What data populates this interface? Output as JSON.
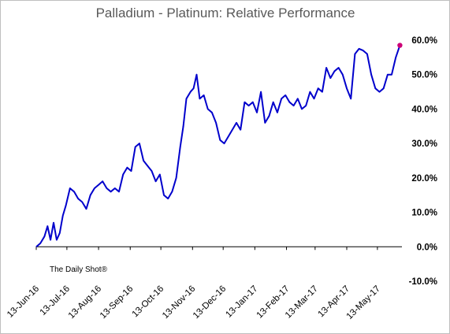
{
  "chart_data": {
    "type": "line",
    "title": "Palladium - Platinum:   Relative Performance",
    "xlabel": "",
    "ylabel": "",
    "ylim": [
      -10,
      60
    ],
    "y_ticks": [
      "-10.0%",
      "0.0%",
      "10.0%",
      "20.0%",
      "30.0%",
      "40.0%",
      "50.0%",
      "60.0%"
    ],
    "x_ticks": [
      "13-Jun-16",
      "13-Jul-16",
      "13-Aug-16",
      "13-Sep-16",
      "13-Oct-16",
      "13-Nov-16",
      "13-Dec-16",
      "13-Jan-17",
      "13-Feb-17",
      "13-Mar-17",
      "13-Apr-17",
      "13-May-17"
    ],
    "annotation": "The Daily Shot®",
    "line_color": "#0000cc",
    "marker_color": "#cc0077",
    "series": [
      {
        "x": [
          "2016-06-13",
          "2016-06-17",
          "2016-06-21",
          "2016-06-24",
          "2016-06-27",
          "2016-06-30",
          "2016-07-03",
          "2016-07-06",
          "2016-07-09",
          "2016-07-12",
          "2016-07-16",
          "2016-07-20",
          "2016-07-24",
          "2016-07-28",
          "2016-08-01",
          "2016-08-05",
          "2016-08-09",
          "2016-08-13",
          "2016-08-17",
          "2016-08-21",
          "2016-08-25",
          "2016-08-29",
          "2016-09-02",
          "2016-09-06",
          "2016-09-10",
          "2016-09-14",
          "2016-09-18",
          "2016-09-22",
          "2016-09-26",
          "2016-09-30",
          "2016-10-04",
          "2016-10-08",
          "2016-10-12",
          "2016-10-16",
          "2016-10-20",
          "2016-10-24",
          "2016-10-28",
          "2016-11-01",
          "2016-11-04",
          "2016-11-07",
          "2016-11-11",
          "2016-11-14",
          "2016-11-17",
          "2016-11-20",
          "2016-11-24",
          "2016-11-28",
          "2016-12-02",
          "2016-12-06",
          "2016-12-10",
          "2016-12-14",
          "2016-12-18",
          "2016-12-22",
          "2016-12-26",
          "2016-12-30",
          "2017-01-03",
          "2017-01-07",
          "2017-01-11",
          "2017-01-15",
          "2017-01-19",
          "2017-01-23",
          "2017-01-27",
          "2017-01-31",
          "2017-02-04",
          "2017-02-08",
          "2017-02-12",
          "2017-02-16",
          "2017-02-20",
          "2017-02-24",
          "2017-02-28",
          "2017-03-04",
          "2017-03-08",
          "2017-03-12",
          "2017-03-16",
          "2017-03-20",
          "2017-03-24",
          "2017-03-28",
          "2017-04-01",
          "2017-04-05",
          "2017-04-09",
          "2017-04-13",
          "2017-04-17",
          "2017-04-21",
          "2017-04-25",
          "2017-04-29",
          "2017-05-03",
          "2017-05-07",
          "2017-05-11",
          "2017-05-15",
          "2017-05-19",
          "2017-05-23",
          "2017-05-27",
          "2017-05-31",
          "2017-06-04"
        ],
        "y": [
          0.0,
          1.0,
          3.0,
          6.0,
          2.0,
          7.0,
          2.0,
          4.0,
          9.0,
          12.0,
          17.0,
          16.0,
          14.0,
          13.0,
          11.0,
          15.0,
          17.0,
          18.0,
          19.0,
          17.0,
          16.0,
          17.0,
          16.0,
          21.0,
          23.0,
          22.0,
          29.0,
          30.0,
          25.0,
          23.5,
          22.0,
          19.0,
          21.0,
          15.0,
          14.0,
          16.0,
          20.0,
          29.0,
          35.0,
          43.0,
          45.0,
          46.0,
          50.0,
          43.0,
          44.0,
          40.0,
          39.0,
          36.0,
          31.0,
          30.0,
          32.0,
          34.0,
          36.0,
          34.0,
          42.0,
          41.0,
          42.0,
          39.0,
          45.0,
          36.0,
          38.0,
          42.0,
          39.0,
          43.0,
          44.0,
          42.0,
          41.0,
          43.0,
          40.0,
          41.0,
          45.0,
          43.0,
          46.0,
          45.0,
          52.0,
          49.0,
          51.0,
          52.0,
          50.0,
          46.0,
          43.0,
          56.0,
          57.5,
          57.0,
          56.0,
          50.0,
          46.0,
          45.0,
          46.0,
          50.0,
          50.0,
          55.0,
          58.5
        ]
      }
    ]
  }
}
